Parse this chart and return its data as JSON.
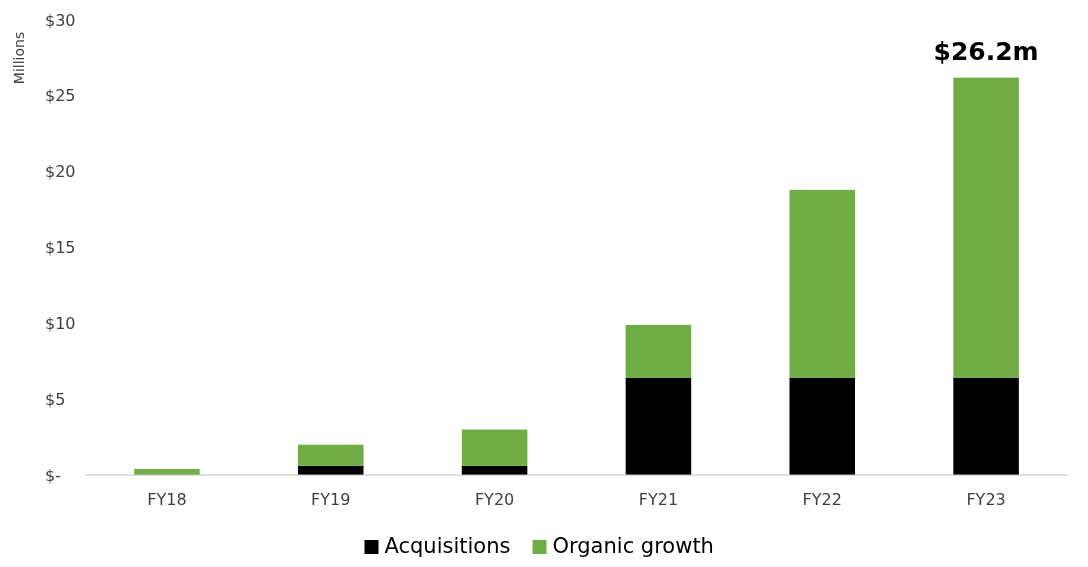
{
  "chart_data": {
    "type": "bar",
    "stacked": true,
    "ylabel": "Millions",
    "categories": [
      "FY18",
      "FY19",
      "FY20",
      "FY21",
      "FY22",
      "FY23"
    ],
    "series": [
      {
        "name": "Acquisitions",
        "color": "#000000",
        "values": [
          0,
          0.6,
          0.6,
          6.4,
          6.4,
          6.4
        ]
      },
      {
        "name": "Organic growth",
        "color": "#70ad47",
        "values": [
          0.4,
          1.4,
          2.4,
          3.5,
          12.4,
          19.8
        ]
      }
    ],
    "ylim": [
      0,
      30
    ],
    "yticks": [
      {
        "value": 0,
        "label": "$-"
      },
      {
        "value": 5,
        "label": "$5"
      },
      {
        "value": 10,
        "label": "$10"
      },
      {
        "value": 15,
        "label": "$15"
      },
      {
        "value": 20,
        "label": "$20"
      },
      {
        "value": 25,
        "label": "$25"
      },
      {
        "value": 30,
        "label": "$30"
      }
    ],
    "annotations": [
      {
        "text": "$26.2m",
        "x": "FY23",
        "y": 26.2
      }
    ],
    "legend": "bottom",
    "grid": false
  }
}
